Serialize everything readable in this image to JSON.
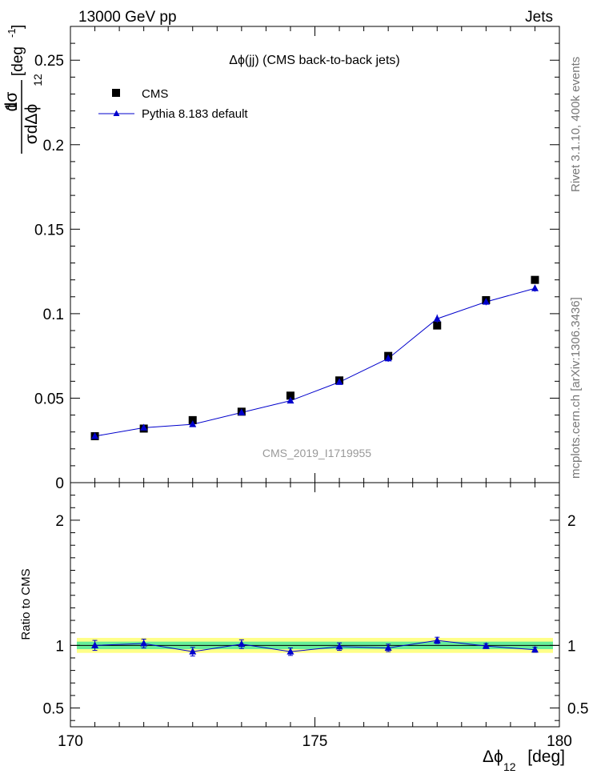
{
  "header": {
    "left": "13000 GeV pp",
    "right": "Jets"
  },
  "side_labels": {
    "rivet": "Rivet 3.1.10,  400k events",
    "mcplots": "mcplots.cern.ch [arXiv:1306.3436]"
  },
  "chart_data": [
    {
      "type": "scatter",
      "title": "Δϕ(jj) (CMS back-to-back jets)",
      "watermark": "CMS_2019_I1719955",
      "ylabel_num": "1",
      "ylabel_num_frac": "dσ",
      "ylabel_den_frac": "σdΔϕ",
      "ylabel_den_sub": "12",
      "ylabel_unit": "[deg",
      "ylabel_unit_sup": "-1",
      "ylabel_unit_close": "]",
      "xlim": [
        170,
        180
      ],
      "ylim": [
        0,
        0.27
      ],
      "yticks": [
        "0",
        "0.05",
        "0.1",
        "0.15",
        "0.2",
        "0.25"
      ],
      "ytick_values": [
        0,
        0.05,
        0.1,
        0.15,
        0.2,
        0.25
      ],
      "legend_position": "top-left",
      "series": [
        {
          "name": "CMS",
          "marker": "square",
          "color": "#000000",
          "x": [
            170.5,
            171.5,
            172.5,
            173.5,
            174.5,
            175.5,
            176.5,
            177.5,
            178.5,
            179.5
          ],
          "y": [
            0.0275,
            0.032,
            0.037,
            0.042,
            0.0515,
            0.0605,
            0.075,
            0.093,
            0.108,
            0.12
          ]
        },
        {
          "name": "Pythia 8.183 default",
          "marker": "triangle",
          "color": "#0000cc",
          "x": [
            170.5,
            171.5,
            172.5,
            173.5,
            174.5,
            175.5,
            176.5,
            177.5,
            178.5,
            179.5
          ],
          "y": [
            0.0275,
            0.0325,
            0.0345,
            0.0415,
            0.0485,
            0.0595,
            0.0735,
            0.097,
            0.107,
            0.115
          ],
          "yerr": [
            0.001,
            0.001,
            0.001,
            0.001,
            0.0015,
            0.0015,
            0.002,
            0.0025,
            0.002,
            0.002
          ]
        }
      ]
    },
    {
      "type": "line",
      "ylabel": "Ratio to CMS",
      "xlabel": "Δϕ",
      "xlabel_sub": "12",
      "xlabel_unit": "[deg]",
      "xlim": [
        170,
        180
      ],
      "ylim": [
        0.35,
        2.3
      ],
      "xticks": [
        "170",
        "175",
        "180"
      ],
      "xtick_values": [
        170,
        175,
        180
      ],
      "yticks": [
        "0.5",
        "1",
        "2"
      ],
      "ytick_values": [
        0.5,
        1,
        2
      ],
      "band_green": [
        0.97,
        1.03
      ],
      "band_yellow": [
        0.94,
        1.06
      ],
      "band_green_color": "#66ee99",
      "band_yellow_color": "#ffff88",
      "series": [
        {
          "name": "Pythia 8.183 default",
          "color": "#0000cc",
          "x": [
            170.5,
            171.5,
            172.5,
            173.5,
            174.5,
            175.5,
            176.5,
            177.5,
            178.5,
            179.5
          ],
          "y": [
            1.0,
            1.015,
            0.95,
            1.01,
            0.95,
            0.99,
            0.98,
            1.04,
            0.995,
            0.965
          ],
          "yerr": [
            0.04,
            0.035,
            0.035,
            0.035,
            0.03,
            0.03,
            0.03,
            0.025,
            0.02,
            0.02
          ]
        }
      ]
    }
  ]
}
